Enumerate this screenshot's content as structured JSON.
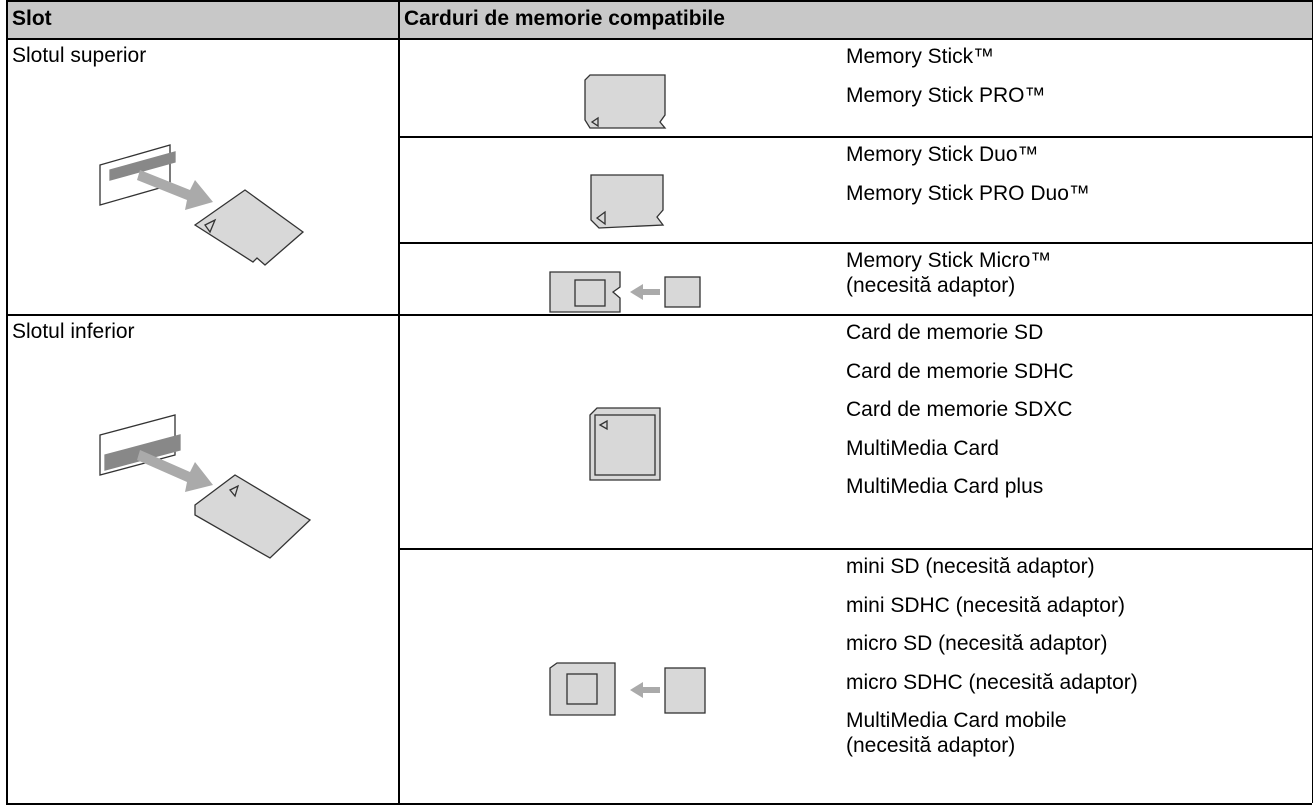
{
  "header": {
    "columns": [
      "Slot",
      "Carduri de memorie compatibile"
    ]
  },
  "table": {
    "rows": [
      {
        "slot": "Slotul superior",
        "groups": [
          {
            "cards": [
              "Memory Stick™",
              "Memory Stick PRO™"
            ]
          },
          {
            "cards": [
              "Memory Stick Duo™",
              "Memory Stick PRO Duo™"
            ]
          },
          {
            "cards": [
              "Memory Stick Micro™\n(necesită adaptor)"
            ]
          }
        ]
      },
      {
        "slot": "Slotul inferior",
        "groups": [
          {
            "cards": [
              "Card de memorie SD",
              "Card de memorie SDHC",
              "Card de memorie SDXC",
              "MultiMedia Card",
              "MultiMedia Card plus"
            ]
          },
          {
            "cards": [
              "mini SD (necesită adaptor)",
              "mini SDHC (necesită adaptor)",
              "micro SD (necesită adaptor)",
              "micro SDHC (necesită adaptor)",
              "MultiMedia Card mobile\n(necesită adaptor)"
            ]
          }
        ]
      }
    ]
  }
}
